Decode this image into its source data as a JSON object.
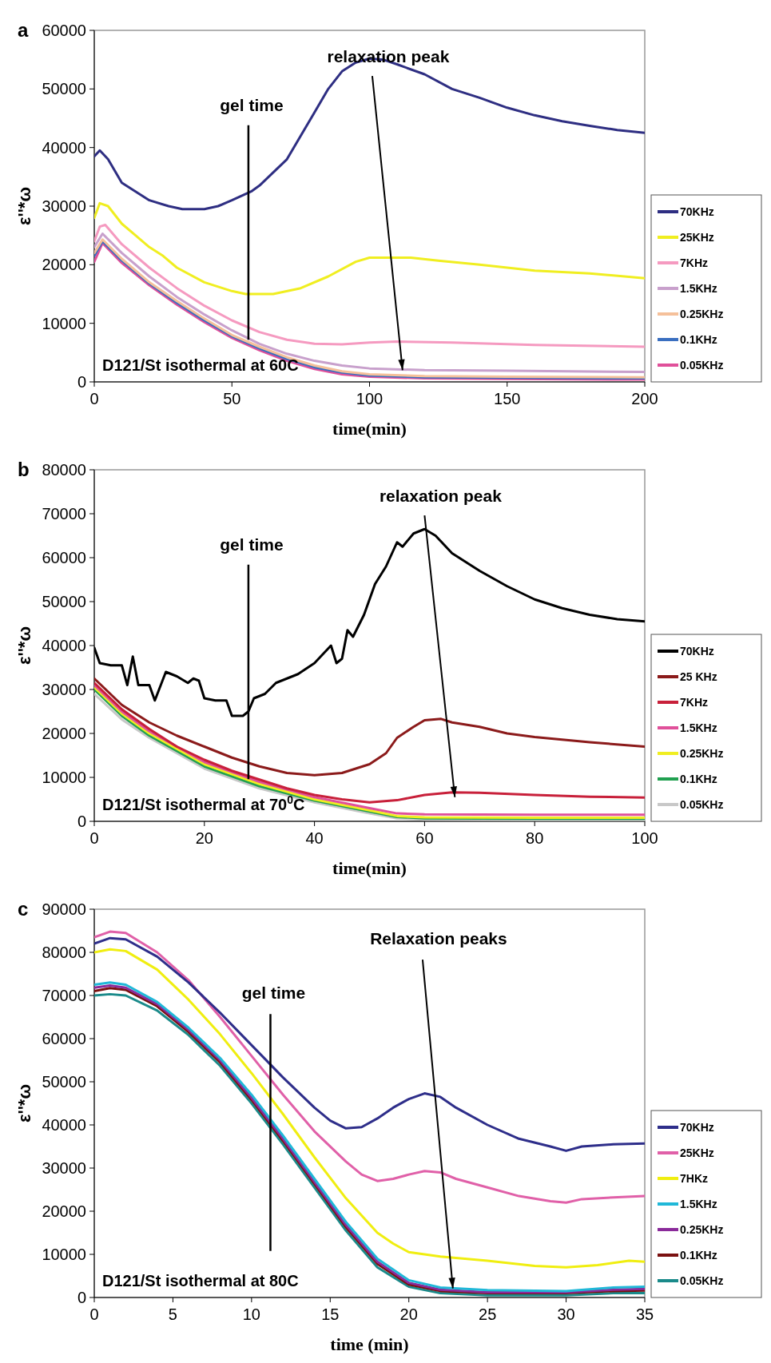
{
  "chart_data": [
    {
      "type": "line",
      "title": "a",
      "xlabel": "time(min)",
      "ylabel": "ε''*ω",
      "xlim": [
        0,
        200
      ],
      "xticks": [
        0,
        50,
        100,
        150,
        200
      ],
      "ylim": [
        0,
        60000
      ],
      "yticks": [
        0,
        10000,
        20000,
        30000,
        40000,
        50000,
        60000
      ],
      "legend": "right",
      "grid": false,
      "ref_lines": [
        {
          "axis": "x",
          "value": 56,
          "label": "gel time",
          "color": "#000000"
        }
      ],
      "annotations": [
        {
          "text": "relaxation peak",
          "x": 112,
          "y": 2000
        },
        "D121/St isothermal at  60C"
      ],
      "series": [
        {
          "name": "70KHz",
          "color": "#2e2e82",
          "x": [
            0,
            2,
            5,
            10,
            15,
            20,
            27,
            32,
            40,
            45,
            50,
            57,
            60,
            70,
            75,
            80,
            85,
            90,
            95,
            100,
            105,
            110,
            120,
            130,
            140,
            150,
            160,
            170,
            180,
            190,
            200
          ],
          "values": [
            38500,
            39500,
            38000,
            34000,
            32500,
            31000,
            30000,
            29500,
            29500,
            30000,
            31000,
            32500,
            33500,
            38000,
            42000,
            46000,
            50000,
            53000,
            54500,
            55200,
            55000,
            54200,
            52500,
            50000,
            48500,
            46800,
            45500,
            44500,
            43700,
            43000,
            42500
          ]
        },
        {
          "name": "25KHz",
          "color": "#f0ee20",
          "x": [
            0,
            2,
            5,
            10,
            15,
            20,
            25,
            30,
            40,
            50,
            55,
            65,
            75,
            85,
            95,
            100,
            115,
            125,
            140,
            160,
            180,
            200
          ],
          "values": [
            28000,
            30500,
            30000,
            27000,
            25000,
            23000,
            21500,
            19500,
            17000,
            15500,
            15000,
            15000,
            16000,
            18000,
            20500,
            21200,
            21200,
            20700,
            20000,
            19000,
            18500,
            17700
          ]
        },
        {
          "name": "7KHz",
          "color": "#f59ac0",
          "x": [
            0,
            2,
            4,
            10,
            20,
            30,
            40,
            50,
            60,
            70,
            80,
            90,
            100,
            110,
            130,
            160,
            200
          ],
          "values": [
            24000,
            26500,
            26800,
            23500,
            19500,
            16000,
            13000,
            10500,
            8500,
            7200,
            6500,
            6400,
            6700,
            6900,
            6700,
            6300,
            6000
          ]
        },
        {
          "name": "1.5KHz",
          "color": "#c8a0cc",
          "x": [
            0,
            3,
            10,
            20,
            30,
            40,
            50,
            60,
            70,
            80,
            90,
            100,
            120,
            150,
            200
          ],
          "values": [
            23000,
            25300,
            22000,
            18000,
            14500,
            11500,
            8800,
            6500,
            4800,
            3600,
            2800,
            2300,
            2000,
            1900,
            1700
          ]
        },
        {
          "name": "0.25KHz",
          "color": "#f5c09a",
          "x": [
            0,
            3,
            10,
            20,
            30,
            40,
            50,
            60,
            70,
            80,
            90,
            100,
            120,
            150,
            200
          ],
          "values": [
            22000,
            24300,
            21000,
            17000,
            13800,
            10800,
            8000,
            6000,
            4200,
            2800,
            1800,
            1300,
            1000,
            900,
            800
          ]
        },
        {
          "name": "0.1KHz",
          "color": "#3a6fc0",
          "x": [
            0,
            3,
            10,
            20,
            30,
            40,
            50,
            60,
            70,
            80,
            90,
            100,
            120,
            150,
            200
          ],
          "values": [
            21500,
            24000,
            20700,
            16800,
            13500,
            10500,
            7800,
            5700,
            3900,
            2500,
            1600,
            1100,
            800,
            700,
            600
          ]
        },
        {
          "name": "0.05KHz",
          "color": "#e0509a",
          "x": [
            0,
            3,
            10,
            20,
            30,
            40,
            50,
            60,
            70,
            80,
            90,
            100,
            120,
            150,
            200
          ],
          "values": [
            20500,
            23700,
            20300,
            16500,
            13200,
            10200,
            7500,
            5400,
            3600,
            2200,
            1300,
            900,
            600,
            500,
            400
          ]
        }
      ]
    },
    {
      "type": "line",
      "title": "b",
      "xlabel": "time(min)",
      "ylabel": "ε''*ω",
      "xlim": [
        0,
        100
      ],
      "xticks": [
        0,
        20,
        40,
        60,
        80,
        100
      ],
      "ylim": [
        0,
        80000
      ],
      "yticks": [
        0,
        10000,
        20000,
        30000,
        40000,
        50000,
        60000,
        70000,
        80000
      ],
      "legend": "right",
      "grid": false,
      "ref_lines": [
        {
          "axis": "x",
          "value": 28,
          "label": "gel time",
          "color": "#000000"
        }
      ],
      "annotations": [
        {
          "text": "relaxation peak",
          "x": 65.5,
          "y": 5500
        },
        "D121/St isothermal at 70$^{0}$C"
      ],
      "series": [
        {
          "name": "70KHz",
          "color": "#000000",
          "x": [
            0,
            1,
            3,
            5,
            6,
            7,
            8,
            10,
            11,
            13,
            15,
            17,
            18,
            19,
            20,
            22,
            24,
            25,
            27,
            28,
            29,
            31,
            33,
            35,
            37,
            40,
            43,
            44,
            45,
            46,
            47,
            49,
            51,
            53,
            55,
            56,
            58,
            60,
            62,
            65,
            70,
            75,
            80,
            85,
            90,
            95,
            100
          ],
          "values": [
            39500,
            36000,
            35500,
            35500,
            31000,
            37500,
            31000,
            31000,
            27500,
            34000,
            33000,
            31500,
            32500,
            32000,
            28000,
            27500,
            27500,
            24000,
            24000,
            25000,
            28000,
            29000,
            31500,
            32500,
            33500,
            36000,
            40000,
            36000,
            37000,
            43500,
            42000,
            47000,
            54000,
            58000,
            63500,
            62500,
            65500,
            66500,
            65000,
            61000,
            57000,
            53500,
            50500,
            48500,
            47000,
            46000,
            45500
          ]
        },
        {
          "name": "25 KHz",
          "color": "#8b1a1a",
          "x": [
            0,
            5,
            10,
            15,
            20,
            25,
            30,
            35,
            40,
            45,
            50,
            53,
            55,
            58,
            60,
            63,
            65,
            70,
            75,
            80,
            90,
            100
          ],
          "values": [
            32500,
            26500,
            22500,
            19500,
            17000,
            14500,
            12500,
            11000,
            10500,
            11000,
            13000,
            15500,
            19000,
            21500,
            23000,
            23300,
            22500,
            21500,
            20000,
            19200,
            18000,
            17000
          ]
        },
        {
          "name": "7KHz",
          "color": "#c8203a",
          "x": [
            0,
            5,
            10,
            15,
            20,
            25,
            30,
            35,
            40,
            45,
            50,
            55,
            60,
            65,
            70,
            80,
            90,
            100
          ],
          "values": [
            31500,
            25500,
            21000,
            17000,
            14000,
            11500,
            9500,
            7500,
            6000,
            5000,
            4300,
            4800,
            6000,
            6600,
            6500,
            6000,
            5600,
            5400
          ]
        },
        {
          "name": "1.5KHz",
          "color": "#e0509a",
          "x": [
            0,
            5,
            10,
            20,
            30,
            40,
            50,
            55,
            60,
            80,
            100
          ],
          "values": [
            31000,
            25000,
            20500,
            13500,
            9000,
            5500,
            3000,
            1800,
            1600,
            1500,
            1500
          ]
        },
        {
          "name": "0.25KHz",
          "color": "#f0ee20",
          "x": [
            0,
            5,
            10,
            20,
            30,
            40,
            50,
            55,
            60,
            80,
            100
          ],
          "values": [
            30500,
            24500,
            20000,
            13000,
            8500,
            5000,
            2500,
            1200,
            900,
            800,
            800
          ]
        },
        {
          "name": "0.1KHz",
          "color": "#20a050",
          "x": [
            0,
            5,
            10,
            20,
            30,
            40,
            50,
            55,
            60,
            80,
            100
          ],
          "values": [
            30000,
            24000,
            19500,
            12500,
            8000,
            4700,
            2200,
            1000,
            700,
            600,
            600
          ]
        },
        {
          "name": "0.05KHz",
          "color": "#c8c8c8",
          "x": [
            0,
            5,
            10,
            20,
            30,
            40,
            50,
            55,
            60,
            80,
            100
          ],
          "values": [
            29000,
            23200,
            19000,
            12000,
            7500,
            4300,
            1800,
            700,
            400,
            300,
            300
          ]
        }
      ]
    },
    {
      "type": "line",
      "title": "c",
      "xlabel": "time (min)",
      "ylabel": "ε''*ω",
      "xlim": [
        0,
        35
      ],
      "xticks": [
        0,
        5,
        10,
        15,
        20,
        25,
        30,
        35
      ],
      "ylim": [
        0,
        90000
      ],
      "yticks": [
        0,
        10000,
        20000,
        30000,
        40000,
        50000,
        60000,
        70000,
        80000,
        90000
      ],
      "legend": "right",
      "grid": false,
      "ref_lines": [
        {
          "axis": "x",
          "value": 11.2,
          "label": "gel time",
          "color": "#000000"
        }
      ],
      "annotations": [
        {
          "text": "Relaxation peaks",
          "x": 22.8,
          "y": 2100
        },
        "D121/St isothermal at 80C"
      ],
      "series": [
        {
          "name": "70KHz",
          "color": "#2e2e8a",
          "x": [
            0,
            1,
            2,
            4,
            6,
            8,
            10,
            12,
            14,
            15,
            16,
            17,
            18,
            19,
            20,
            21,
            22,
            23,
            25,
            27,
            29,
            30,
            31,
            33,
            35
          ],
          "values": [
            82000,
            83300,
            83000,
            79000,
            73000,
            66000,
            58500,
            51000,
            44000,
            41000,
            39200,
            39500,
            41500,
            44000,
            46000,
            47300,
            46500,
            44000,
            40000,
            36800,
            35000,
            34000,
            35000,
            35500,
            35700
          ]
        },
        {
          "name": "25KHz",
          "color": "#e060a8",
          "x": [
            0,
            1,
            2,
            4,
            6,
            8,
            10,
            12,
            14,
            16,
            17,
            18,
            19,
            20,
            21,
            22,
            23,
            25,
            27,
            29,
            30,
            31,
            33,
            35
          ],
          "values": [
            83500,
            84800,
            84500,
            80000,
            73500,
            65000,
            56000,
            47000,
            38500,
            31500,
            28500,
            27000,
            27500,
            28500,
            29300,
            29000,
            27500,
            25500,
            23500,
            22300,
            22000,
            22800,
            23200,
            23500
          ]
        },
        {
          "name": "7HKz",
          "color": "#f0ee10",
          "x": [
            0,
            1,
            2,
            4,
            6,
            8,
            10,
            12,
            14,
            16,
            18,
            19,
            20,
            22,
            25,
            28,
            30,
            32,
            34,
            35
          ],
          "values": [
            80000,
            80700,
            80300,
            76000,
            69000,
            61000,
            52000,
            42500,
            32500,
            23000,
            15000,
            12500,
            10500,
            9500,
            8500,
            7300,
            7000,
            7500,
            8500,
            8300
          ]
        },
        {
          "name": "1.5KHz",
          "color": "#20b8d8",
          "x": [
            0,
            1,
            2,
            4,
            6,
            8,
            10,
            12,
            14,
            16,
            18,
            20,
            22,
            25,
            30,
            33,
            35
          ],
          "values": [
            72500,
            73000,
            72500,
            68500,
            62500,
            55500,
            47000,
            37500,
            27500,
            17500,
            9000,
            4000,
            2300,
            1700,
            1500,
            2300,
            2500
          ]
        },
        {
          "name": "0.25KHz",
          "color": "#8a2a9a",
          "x": [
            0,
            1,
            2,
            4,
            6,
            8,
            10,
            12,
            14,
            16,
            18,
            20,
            22,
            25,
            30,
            33,
            35
          ],
          "values": [
            71800,
            72300,
            71800,
            68000,
            62000,
            55000,
            46300,
            36800,
            26800,
            16800,
            8300,
            3400,
            1800,
            1200,
            1200,
            1800,
            2000
          ]
        },
        {
          "name": "0.1KHz",
          "color": "#7a1010",
          "x": [
            0,
            1,
            2,
            4,
            6,
            8,
            10,
            12,
            14,
            16,
            18,
            20,
            22,
            25,
            30,
            33,
            35
          ],
          "values": [
            71000,
            71700,
            71300,
            67500,
            61500,
            54500,
            45800,
            36300,
            26300,
            16300,
            7800,
            3000,
            1500,
            1000,
            1000,
            1500,
            1600
          ]
        },
        {
          "name": "0.05KHz",
          "color": "#1a8a8a",
          "x": [
            0,
            1,
            2,
            4,
            6,
            8,
            10,
            12,
            14,
            16,
            18,
            20,
            22,
            25,
            30,
            33,
            35
          ],
          "values": [
            70000,
            70300,
            70000,
            66500,
            60800,
            53700,
            45000,
            35500,
            25500,
            15500,
            7000,
            2500,
            1000,
            500,
            500,
            1000,
            1000
          ]
        }
      ]
    }
  ]
}
